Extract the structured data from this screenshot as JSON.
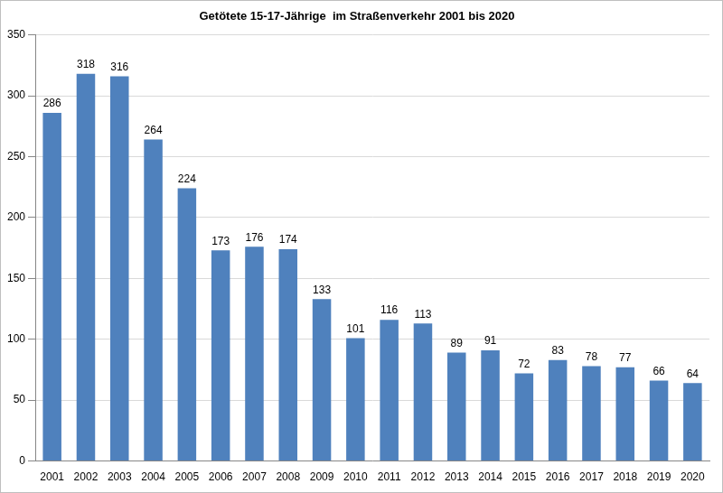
{
  "chart_data": {
    "type": "bar",
    "title": "Getötete 15-17-Jährige  im Straßenverkehr 2001 bis 2020",
    "categories": [
      "2001",
      "2002",
      "2003",
      "2004",
      "2005",
      "2006",
      "2007",
      "2008",
      "2009",
      "2010",
      "2011",
      "2012",
      "2013",
      "2014",
      "2015",
      "2016",
      "2017",
      "2018",
      "2019",
      "2020"
    ],
    "values": [
      286,
      318,
      316,
      264,
      224,
      173,
      176,
      174,
      133,
      101,
      116,
      113,
      89,
      91,
      72,
      83,
      78,
      77,
      66,
      64
    ],
    "color": "#4f81bd",
    "ylim": [
      0,
      350
    ],
    "yticks": [
      0,
      50,
      100,
      150,
      200,
      250,
      300,
      350
    ],
    "grid": true,
    "data_labels": true
  }
}
